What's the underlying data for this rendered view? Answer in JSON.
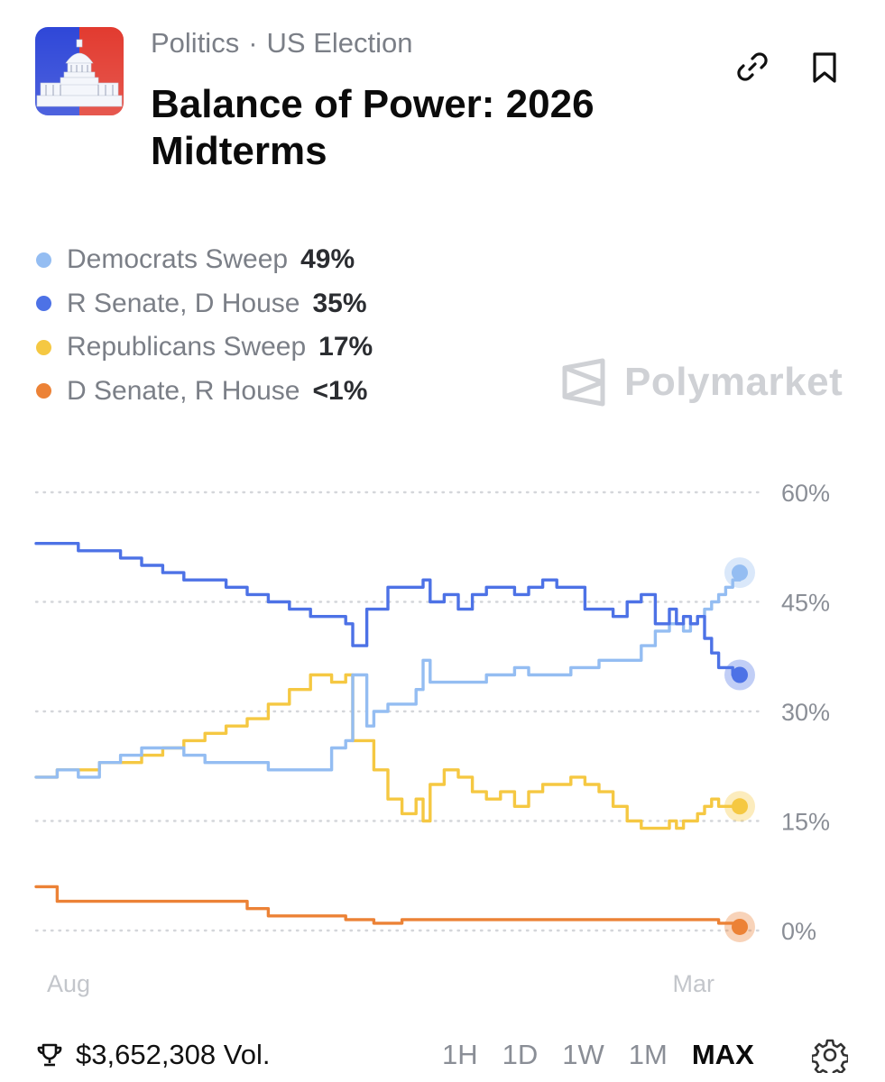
{
  "header": {
    "category": "Politics",
    "separator": "·",
    "subcategory": "US Election",
    "title": "Balance of Power: 2026 Midterms",
    "thumbnail_icon": "capitol-building-icon",
    "link_icon": "link-icon",
    "bookmark_icon": "bookmark-icon"
  },
  "legend": [
    {
      "name": "Democrats Sweep",
      "value": "49%",
      "color": "#94bdf2"
    },
    {
      "name": "R Senate, D House",
      "value": "35%",
      "color": "#4d72e6"
    },
    {
      "name": "Republicans Sweep",
      "value": "17%",
      "color": "#f5c842"
    },
    {
      "name": "D Senate, R House",
      "value": "<1%",
      "color": "#ec8236"
    }
  ],
  "watermark": {
    "text": "Polymarket",
    "icon": "polymarket-logo-icon"
  },
  "chart_data": {
    "type": "line",
    "title": "",
    "xlabel": "",
    "ylabel": "",
    "x_ticks": [
      "Aug",
      "Mar"
    ],
    "y_ticks": [
      "60%",
      "45%",
      "30%",
      "15%",
      "0%"
    ],
    "ylim": [
      0,
      60
    ],
    "xlim": [
      0,
      100
    ],
    "grid": true,
    "series": [
      {
        "name": "R Senate, D House",
        "color": "#4d72e6",
        "x": [
          0,
          3,
          6,
          9,
          12,
          15,
          18,
          21,
          24,
          27,
          30,
          33,
          36,
          39,
          42,
          44,
          45,
          47,
          48,
          50,
          52,
          54,
          55,
          56,
          58,
          60,
          62,
          64,
          66,
          68,
          70,
          72,
          74,
          76,
          78,
          80,
          82,
          84,
          86,
          88,
          90,
          91,
          92,
          93,
          94,
          95,
          96,
          97,
          98,
          99,
          100
        ],
        "y": [
          53,
          53,
          52,
          52,
          51,
          50,
          49,
          48,
          48,
          47,
          46,
          45,
          44,
          43,
          43,
          42,
          39,
          44,
          44,
          47,
          47,
          47,
          48,
          45,
          46,
          44,
          46,
          47,
          47,
          46,
          47,
          48,
          47,
          47,
          44,
          44,
          43,
          45,
          46,
          42,
          44,
          42,
          43,
          42,
          43,
          40,
          38,
          36,
          36,
          35,
          35
        ]
      },
      {
        "name": "Democrats Sweep",
        "color": "#94bdf2",
        "x": [
          0,
          3,
          6,
          9,
          12,
          15,
          18,
          21,
          24,
          27,
          30,
          33,
          36,
          39,
          42,
          44,
          45,
          47,
          48,
          50,
          52,
          54,
          55,
          56,
          58,
          60,
          62,
          64,
          66,
          68,
          70,
          72,
          74,
          76,
          78,
          80,
          82,
          84,
          86,
          88,
          90,
          91,
          92,
          93,
          94,
          95,
          96,
          97,
          98,
          99,
          100
        ],
        "y": [
          21,
          22,
          21,
          23,
          24,
          25,
          25,
          24,
          23,
          23,
          23,
          22,
          22,
          22,
          25,
          26,
          35,
          28,
          30,
          31,
          31,
          33,
          37,
          34,
          34,
          34,
          34,
          35,
          35,
          36,
          35,
          35,
          35,
          36,
          36,
          37,
          37,
          37,
          39,
          41,
          42,
          42,
          41,
          42,
          43,
          44,
          45,
          46,
          47,
          48,
          49
        ]
      },
      {
        "name": "Republicans Sweep",
        "color": "#f5c842",
        "x": [
          0,
          3,
          6,
          9,
          12,
          15,
          18,
          21,
          24,
          27,
          30,
          33,
          36,
          39,
          42,
          44,
          45,
          47,
          48,
          50,
          52,
          54,
          55,
          56,
          58,
          60,
          62,
          64,
          66,
          68,
          70,
          72,
          74,
          76,
          78,
          80,
          82,
          84,
          86,
          88,
          90,
          91,
          92,
          93,
          94,
          95,
          96,
          97,
          98,
          99,
          100
        ],
        "y": [
          21,
          22,
          22,
          23,
          23,
          24,
          25,
          26,
          27,
          28,
          29,
          31,
          33,
          35,
          34,
          35,
          26,
          26,
          22,
          18,
          16,
          18,
          15,
          20,
          22,
          21,
          19,
          18,
          19,
          17,
          19,
          20,
          20,
          21,
          20,
          19,
          17,
          15,
          14,
          14,
          15,
          14,
          15,
          15,
          16,
          17,
          18,
          17,
          17,
          17,
          17
        ]
      },
      {
        "name": "D Senate, R House",
        "color": "#ec8236",
        "x": [
          0,
          3,
          6,
          9,
          12,
          15,
          18,
          21,
          24,
          27,
          30,
          33,
          36,
          39,
          42,
          44,
          45,
          47,
          48,
          50,
          52,
          54,
          55,
          56,
          58,
          60,
          62,
          64,
          66,
          68,
          70,
          72,
          74,
          76,
          78,
          80,
          82,
          84,
          86,
          88,
          90,
          91,
          92,
          93,
          94,
          95,
          96,
          97,
          98,
          99,
          100
        ],
        "y": [
          6,
          4,
          4,
          4,
          4,
          4,
          4,
          4,
          4,
          4,
          3,
          2,
          2,
          2,
          2,
          1.5,
          1.5,
          1.5,
          1,
          1,
          1.5,
          1.5,
          1.5,
          1.5,
          1.5,
          1.5,
          1.5,
          1.5,
          1.5,
          1.5,
          1.5,
          1.5,
          1.5,
          1.5,
          1.5,
          1.5,
          1.5,
          1.5,
          1.5,
          1.5,
          1.5,
          1.5,
          1.5,
          1.5,
          1.5,
          1.5,
          1.5,
          1,
          1,
          1,
          0.5
        ]
      }
    ]
  },
  "footer": {
    "volume": "$3,652,308 Vol.",
    "trophy_icon": "trophy-icon",
    "ranges": [
      "1H",
      "1D",
      "1W",
      "1M",
      "MAX"
    ],
    "active_range": "MAX",
    "settings_icon": "gear-icon"
  }
}
